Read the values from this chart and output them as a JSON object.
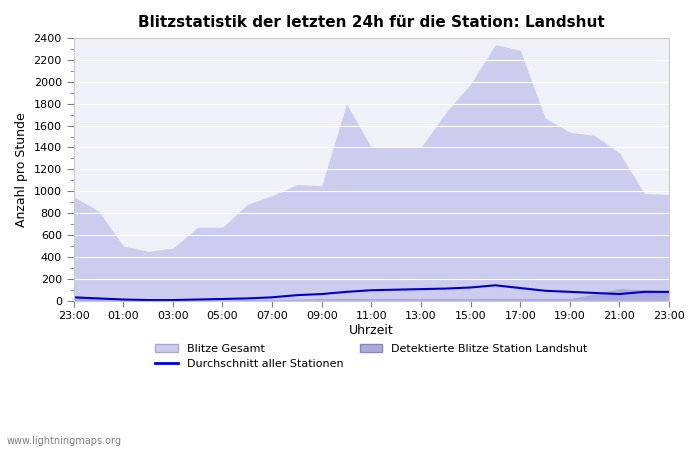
{
  "title": "Blitzstatistik der letzten 24h für die Station: Landshut",
  "xlabel": "Uhrzeit",
  "ylabel": "Anzahl pro Stunde",
  "ylim": [
    0,
    2400
  ],
  "yticks": [
    0,
    200,
    400,
    600,
    800,
    1000,
    1200,
    1400,
    1600,
    1800,
    2000,
    2200,
    2400
  ],
  "background_color": "#ffffff",
  "plot_background": "#f0f0f8",
  "watermark": "www.lightningmaps.org",
  "legend_labels": [
    "Blitze Gesamt",
    "Durchschnitt aller Stationen",
    "Detektierte Blitze Station Landshut"
  ],
  "color_gesamt_fill": "#ccccee",
  "color_gesamt_line": "#ccccee",
  "color_avg_line": "#0000cc",
  "color_station_fill": "#aaaadd",
  "color_station_line": "#aaaadd",
  "x_labels": [
    "23:00",
    "01:00",
    "03:00",
    "05:00",
    "07:00",
    "09:00",
    "11:00",
    "13:00",
    "15:00",
    "17:00",
    "19:00",
    "21:00",
    "23:00"
  ],
  "hours": [
    0,
    1,
    2,
    3,
    4,
    5,
    6,
    7,
    8,
    9,
    10,
    11,
    12,
    13,
    14,
    15,
    16,
    17,
    18,
    19,
    20,
    21,
    22,
    23,
    24
  ],
  "gesamt": [
    950,
    820,
    500,
    450,
    480,
    670,
    670,
    880,
    960,
    1060,
    1050,
    1800,
    1400,
    1410,
    1400,
    1720,
    1980,
    2340,
    2290,
    1670,
    1540,
    1510,
    1350,
    980,
    970
  ],
  "station": [
    40,
    30,
    15,
    10,
    10,
    10,
    10,
    10,
    10,
    15,
    20,
    20,
    20,
    20,
    20,
    20,
    20,
    20,
    20,
    20,
    20,
    60,
    110,
    100,
    90
  ],
  "avg": [
    30,
    20,
    10,
    5,
    5,
    10,
    15,
    20,
    30,
    50,
    60,
    80,
    95,
    100,
    105,
    110,
    120,
    140,
    115,
    90,
    80,
    70,
    60,
    80,
    80
  ]
}
